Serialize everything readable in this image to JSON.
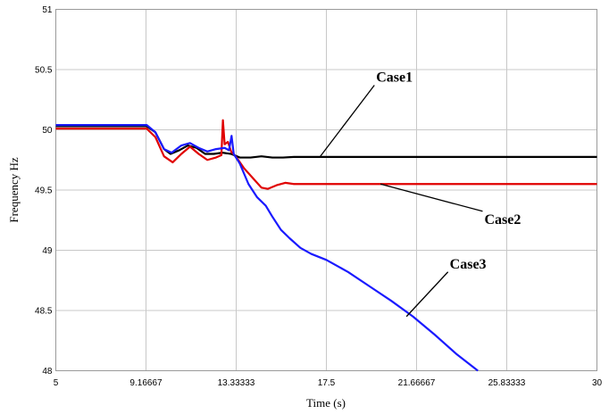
{
  "chart_data": {
    "type": "line",
    "title": "",
    "xlabel": "Time (s)",
    "ylabel": "Frequency Hz",
    "xlim": [
      5,
      30
    ],
    "ylim": [
      48,
      51
    ],
    "grid": true,
    "x_ticks": [
      5,
      9.16667,
      13.33333,
      17.5,
      21.66667,
      25.83333,
      30
    ],
    "x_tick_labels": [
      "5",
      "9.16667",
      "13.33333",
      "17.5",
      "21.66667",
      "25.83333",
      "30"
    ],
    "y_ticks": [
      48,
      48.5,
      49,
      49.5,
      50,
      50.5,
      51
    ],
    "y_tick_labels": [
      "48",
      "48.5",
      "49",
      "49.5",
      "50",
      "50.5",
      "51"
    ],
    "series": [
      {
        "name": "Case1",
        "color": "#000000",
        "points": [
          [
            5,
            50.03
          ],
          [
            9.2,
            50.03
          ],
          [
            9.6,
            49.98
          ],
          [
            10.0,
            49.84
          ],
          [
            10.3,
            49.8
          ],
          [
            10.7,
            49.83
          ],
          [
            11.1,
            49.87
          ],
          [
            11.5,
            49.85
          ],
          [
            11.9,
            49.8
          ],
          [
            12.3,
            49.8
          ],
          [
            12.7,
            49.81
          ],
          [
            13.1,
            49.8
          ],
          [
            13.5,
            49.77
          ],
          [
            14.0,
            49.77
          ],
          [
            14.5,
            49.78
          ],
          [
            15.0,
            49.77
          ],
          [
            15.5,
            49.77
          ],
          [
            16.0,
            49.775
          ],
          [
            17.0,
            49.775
          ],
          [
            20,
            49.775
          ],
          [
            25,
            49.775
          ],
          [
            30,
            49.775
          ]
        ]
      },
      {
        "name": "Case2",
        "color": "#e00000",
        "points": [
          [
            5,
            50.01
          ],
          [
            9.2,
            50.01
          ],
          [
            9.6,
            49.94
          ],
          [
            10.0,
            49.78
          ],
          [
            10.4,
            49.73
          ],
          [
            10.8,
            49.8
          ],
          [
            11.2,
            49.86
          ],
          [
            11.6,
            49.8
          ],
          [
            12.0,
            49.75
          ],
          [
            12.4,
            49.77
          ],
          [
            12.65,
            49.79
          ],
          [
            12.72,
            50.08
          ],
          [
            12.8,
            49.88
          ],
          [
            12.95,
            49.9
          ],
          [
            13.1,
            49.82
          ],
          [
            13.35,
            49.77
          ],
          [
            13.7,
            49.68
          ],
          [
            14.1,
            49.6
          ],
          [
            14.5,
            49.52
          ],
          [
            14.8,
            49.51
          ],
          [
            15.2,
            49.54
          ],
          [
            15.6,
            49.56
          ],
          [
            16.0,
            49.55
          ],
          [
            17,
            49.55
          ],
          [
            20,
            49.55
          ],
          [
            25,
            49.55
          ],
          [
            30,
            49.55
          ]
        ]
      },
      {
        "name": "Case3",
        "color": "#1a1aff",
        "points": [
          [
            5,
            50.04
          ],
          [
            9.2,
            50.04
          ],
          [
            9.6,
            49.98
          ],
          [
            10.0,
            49.84
          ],
          [
            10.35,
            49.81
          ],
          [
            10.8,
            49.87
          ],
          [
            11.2,
            49.89
          ],
          [
            11.6,
            49.85
          ],
          [
            12.0,
            49.82
          ],
          [
            12.4,
            49.84
          ],
          [
            12.8,
            49.85
          ],
          [
            13.0,
            49.83
          ],
          [
            13.12,
            49.95
          ],
          [
            13.22,
            49.8
          ],
          [
            13.5,
            49.72
          ],
          [
            13.9,
            49.55
          ],
          [
            14.3,
            49.44
          ],
          [
            14.7,
            49.37
          ],
          [
            15.0,
            49.28
          ],
          [
            15.4,
            49.17
          ],
          [
            15.8,
            49.1
          ],
          [
            16.3,
            49.02
          ],
          [
            16.8,
            48.97
          ],
          [
            17.5,
            48.92
          ],
          [
            18.5,
            48.82
          ],
          [
            19.5,
            48.7
          ],
          [
            20.5,
            48.58
          ],
          [
            21.5,
            48.45
          ],
          [
            22.5,
            48.3
          ],
          [
            23.5,
            48.14
          ],
          [
            24.5,
            48.0
          ]
        ]
      }
    ],
    "annotations": [
      {
        "text": "Case1",
        "x": 19.8,
        "y": 50.4,
        "arrow_to": [
          17.2,
          49.775
        ]
      },
      {
        "text": "Case2",
        "x": 24.8,
        "y": 49.22,
        "arrow_to": [
          20.0,
          49.55
        ]
      },
      {
        "text": "Case3",
        "x": 23.2,
        "y": 48.85,
        "arrow_to": [
          21.2,
          48.45
        ]
      }
    ]
  }
}
